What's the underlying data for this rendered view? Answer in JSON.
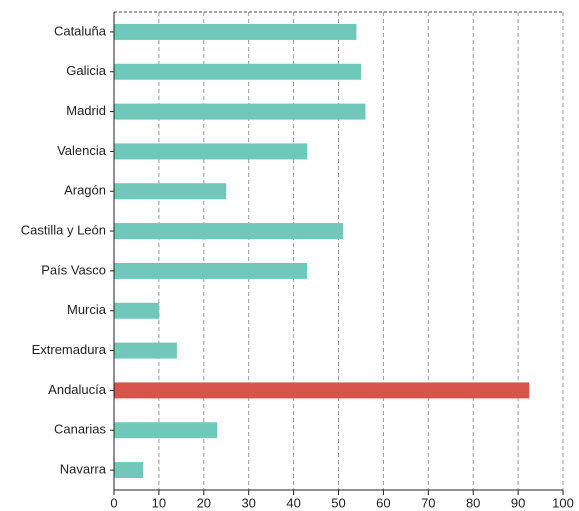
{
  "chart_data": {
    "type": "barh",
    "categories": [
      "Cataluña",
      "Galicia",
      "Madrid",
      "Valencia",
      "Aragón",
      "Castilla y León",
      "País Vasco",
      "Murcia",
      "Extremadura",
      "Andalucía",
      "Canarias",
      "Navarra"
    ],
    "values": [
      54,
      55,
      56,
      43,
      25,
      51,
      43,
      10,
      14,
      92.5,
      23,
      6.5
    ],
    "colors": [
      "#6fc8ba",
      "#6fc8ba",
      "#6fc8ba",
      "#6fc8ba",
      "#6fc8ba",
      "#6fc8ba",
      "#6fc8ba",
      "#6fc8ba",
      "#6fc8ba",
      "#d6544a",
      "#6fc8ba",
      "#6fc8ba"
    ],
    "xlim": [
      0,
      100
    ],
    "xticks": [
      0,
      10,
      20,
      30,
      40,
      50,
      60,
      70,
      80,
      90,
      100
    ],
    "grid": true
  }
}
